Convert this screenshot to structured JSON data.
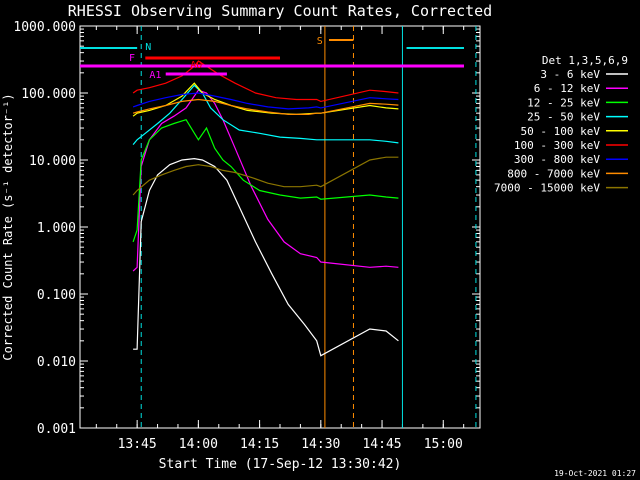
{
  "chart_data": {
    "type": "line",
    "title": "RHESSI Observing Summary Count Rates, Corrected",
    "ylabel": "Corrected Count Rate (s⁻¹ detector⁻¹)",
    "xlabel": "Start Time (17-Sep-12 13:30:42)",
    "x_ticks": [
      "13:45",
      "14:00",
      "14:15",
      "14:30",
      "14:45",
      "15:00"
    ],
    "y_ticks": [
      "0.001",
      "0.010",
      "0.100",
      "1.000",
      "10.000",
      "100.000",
      "1000.000"
    ],
    "ylim": [
      0.001,
      1000
    ],
    "y_scale": "log",
    "xlim": [
      "13:31",
      "15:09"
    ],
    "legend_title": "Det 1,3,5,6,9",
    "legend_position": "right",
    "flags": [
      {
        "label": "N",
        "color": "#00e0e0"
      },
      {
        "label": "S",
        "color": "#ff8c00"
      },
      {
        "label": "F",
        "color": "#ff00ff"
      },
      {
        "label": "A0",
        "color": "#ff0000"
      },
      {
        "label": "A1",
        "color": "#ff00ff"
      }
    ],
    "series": [
      {
        "name": "3 - 6 keV",
        "color": "#ffffff",
        "x": [
          "13:44",
          "13:45",
          "13:46",
          "13:48",
          "13:50",
          "13:53",
          "13:56",
          "13:59",
          "14:01",
          "14:04",
          "14:07",
          "14:10",
          "14:14",
          "14:18",
          "14:22",
          "14:26",
          "14:29",
          "14:30",
          "14:42",
          "14:46",
          "14:49"
        ],
        "y": [
          0.015,
          0.015,
          1.2,
          3.5,
          6.0,
          8.5,
          10.0,
          10.5,
          10.0,
          8.0,
          5.0,
          2.0,
          0.6,
          0.2,
          0.07,
          0.035,
          0.02,
          0.012,
          0.03,
          0.028,
          0.02
        ]
      },
      {
        "name": "6 - 12 keV",
        "color": "#ff00ff",
        "x": [
          "13:44",
          "13:45",
          "13:46",
          "13:48",
          "13:51",
          "13:54",
          "13:57",
          "14:00",
          "14:02",
          "14:04",
          "14:06",
          "14:09",
          "14:13",
          "14:17",
          "14:21",
          "14:25",
          "14:29",
          "14:30",
          "14:42",
          "14:46",
          "14:49"
        ],
        "y": [
          0.22,
          0.25,
          8,
          20,
          35,
          45,
          60,
          110,
          100,
          70,
          40,
          15,
          4,
          1.3,
          0.6,
          0.4,
          0.35,
          0.3,
          0.25,
          0.26,
          0.25
        ]
      },
      {
        "name": "12 - 25 keV",
        "color": "#00ff00",
        "x": [
          "13:44",
          "13:45",
          "13:46",
          "13:48",
          "13:51",
          "13:54",
          "13:57",
          "14:00",
          "14:02",
          "14:04",
          "14:06",
          "14:08",
          "14:11",
          "14:15",
          "14:20",
          "14:25",
          "14:29",
          "14:30",
          "14:42",
          "14:46",
          "14:49"
        ],
        "y": [
          0.6,
          0.9,
          10,
          20,
          30,
          35,
          40,
          20,
          30,
          15,
          10,
          8,
          5,
          3.5,
          3,
          2.7,
          2.8,
          2.6,
          3,
          2.8,
          2.7
        ]
      },
      {
        "name": "25 - 50 keV",
        "color": "#00ffff",
        "x": [
          "13:44",
          "13:45",
          "13:47",
          "13:50",
          "13:53",
          "13:56",
          "13:59",
          "14:01",
          "14:03",
          "14:06",
          "14:10",
          "14:15",
          "14:20",
          "14:25",
          "14:29",
          "14:30",
          "14:42",
          "14:46",
          "14:49"
        ],
        "y": [
          17,
          20,
          25,
          35,
          50,
          80,
          130,
          100,
          60,
          40,
          28,
          25,
          22,
          21,
          20,
          20,
          20,
          19,
          18
        ]
      },
      {
        "name": "50 - 100 keV",
        "color": "#ffff00",
        "x": [
          "13:44",
          "13:45",
          "13:48",
          "13:52",
          "13:56",
          "13:59",
          "14:01",
          "14:04",
          "14:08",
          "14:12",
          "14:18",
          "14:24",
          "14:29",
          "14:30",
          "14:42",
          "14:46",
          "14:49"
        ],
        "y": [
          45,
          50,
          55,
          65,
          90,
          140,
          100,
          80,
          65,
          55,
          50,
          48,
          50,
          50,
          65,
          60,
          58
        ]
      },
      {
        "name": "100 - 300 keV",
        "color": "#ff0000",
        "x": [
          "13:44",
          "13:45",
          "13:48",
          "13:52",
          "13:56",
          "13:59",
          "14:00",
          "14:02",
          "14:05",
          "14:09",
          "14:14",
          "14:19",
          "14:24",
          "14:29",
          "14:30",
          "14:42",
          "14:46",
          "14:49"
        ],
        "y": [
          100,
          110,
          120,
          140,
          180,
          250,
          300,
          250,
          190,
          140,
          100,
          85,
          80,
          80,
          75,
          110,
          105,
          100
        ]
      },
      {
        "name": "300 - 800 keV",
        "color": "#0000ff",
        "x": [
          "13:44",
          "13:45",
          "13:48",
          "13:52",
          "13:56",
          "14:00",
          "14:04",
          "14:08",
          "14:12",
          "14:17",
          "14:22",
          "14:27",
          "14:29",
          "14:30",
          "14:42",
          "14:46",
          "14:49"
        ],
        "y": [
          62,
          65,
          75,
          85,
          95,
          100,
          90,
          80,
          70,
          62,
          58,
          60,
          62,
          60,
          85,
          82,
          80
        ]
      },
      {
        "name": "800 - 7000 keV",
        "color": "#ff8c00",
        "x": [
          "13:44",
          "13:45",
          "13:48",
          "13:52",
          "13:56",
          "14:00",
          "14:04",
          "14:08",
          "14:12",
          "14:17",
          "14:22",
          "14:27",
          "14:29",
          "14:30",
          "14:42",
          "14:46",
          "14:49"
        ],
        "y": [
          50,
          52,
          58,
          65,
          75,
          80,
          75,
          65,
          58,
          52,
          48,
          48,
          50,
          50,
          70,
          68,
          66
        ]
      },
      {
        "name": "7000 - 15000 keV",
        "color": "#8b7500",
        "x": [
          "13:44",
          "13:45",
          "13:48",
          "13:51",
          "13:54",
          "13:57",
          "14:00",
          "14:03",
          "14:06",
          "14:09",
          "14:13",
          "14:17",
          "14:21",
          "14:25",
          "14:29",
          "14:30",
          "14:42",
          "14:46",
          "14:49"
        ],
        "y": [
          3,
          3.5,
          5,
          6,
          7,
          8,
          8.5,
          8,
          7,
          6.5,
          5.5,
          4.5,
          4,
          4,
          4.2,
          4,
          10,
          11,
          11
        ]
      }
    ]
  },
  "timestamp": "19-Oct-2021 01:27"
}
